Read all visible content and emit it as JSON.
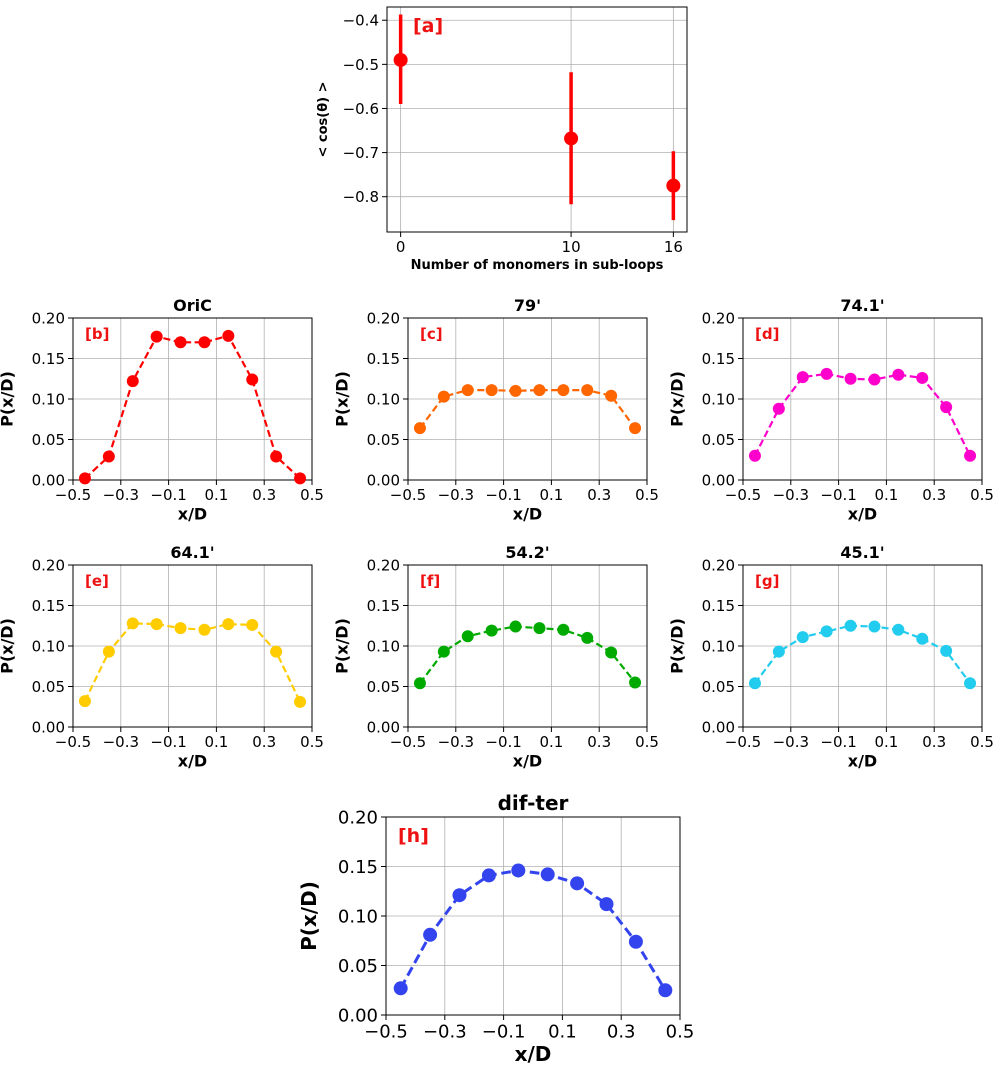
{
  "chart_data": [
    {
      "panel": "[a]",
      "type": "scatter",
      "title": "",
      "xlabel": "Number of monomers in sub-loops",
      "ylabel": "< cos(θ) >",
      "x_ticks": [
        0,
        10,
        16
      ],
      "y_ticks": [
        -0.8,
        -0.7,
        -0.6,
        -0.5,
        -0.4
      ],
      "y_tick_labels": [
        "−0.8",
        "−0.7",
        "−0.6",
        "−0.5",
        "−0.4"
      ],
      "xlim": [
        -0.8,
        16.8
      ],
      "ylim": [
        -0.88,
        -0.37
      ],
      "grid": true,
      "color": "#ff0000",
      "x": [
        0,
        10,
        16
      ],
      "y": [
        -0.49,
        -0.668,
        -0.775
      ],
      "yerr_low": [
        -0.59,
        -0.817,
        -0.853
      ],
      "yerr_high": [
        -0.387,
        -0.518,
        -0.697
      ]
    },
    {
      "panel": "[b]",
      "type": "line",
      "title": "OriC",
      "xlabel": "x/D",
      "ylabel": "P(x/D)",
      "color": "#ff0000",
      "xlim": [
        -0.5,
        0.5
      ],
      "ylim": [
        0,
        0.2
      ],
      "grid": true,
      "x_ticks": [
        -0.5,
        -0.3,
        -0.1,
        0.1,
        0.3,
        0.5
      ],
      "x_tick_labels": [
        "−0.5",
        "−0.3",
        "−0.1",
        "0.1",
        "0.3",
        "0.5"
      ],
      "y_ticks": [
        0,
        0.05,
        0.1,
        0.15,
        0.2
      ],
      "y_tick_labels": [
        "0.00",
        "0.05",
        "0.10",
        "0.15",
        "0.20"
      ],
      "x": [
        -0.45,
        -0.35,
        -0.25,
        -0.15,
        -0.05,
        0.05,
        0.15,
        0.25,
        0.35,
        0.45
      ],
      "y": [
        0.002,
        0.029,
        0.122,
        0.177,
        0.17,
        0.17,
        0.178,
        0.124,
        0.029,
        0.002
      ]
    },
    {
      "panel": "[c]",
      "type": "line",
      "title": "79'",
      "xlabel": "x/D",
      "ylabel": "P(x/D)",
      "color": "#ff6600",
      "xlim": [
        -0.5,
        0.5
      ],
      "ylim": [
        0,
        0.2
      ],
      "grid": true,
      "x_ticks": [
        -0.5,
        -0.3,
        -0.1,
        0.1,
        0.3,
        0.5
      ],
      "x_tick_labels": [
        "−0.5",
        "−0.3",
        "−0.1",
        "0.1",
        "0.3",
        "0.5"
      ],
      "y_ticks": [
        0,
        0.05,
        0.1,
        0.15,
        0.2
      ],
      "y_tick_labels": [
        "0.00",
        "0.05",
        "0.10",
        "0.15",
        "0.20"
      ],
      "x": [
        -0.45,
        -0.35,
        -0.25,
        -0.15,
        -0.05,
        0.05,
        0.15,
        0.25,
        0.35,
        0.45
      ],
      "y": [
        0.064,
        0.103,
        0.111,
        0.111,
        0.11,
        0.111,
        0.111,
        0.111,
        0.104,
        0.064
      ]
    },
    {
      "panel": "[d]",
      "type": "line",
      "title": "74.1'",
      "xlabel": "x/D",
      "ylabel": "P(x/D)",
      "color": "#ff00cc",
      "xlim": [
        -0.5,
        0.5
      ],
      "ylim": [
        0,
        0.2
      ],
      "grid": true,
      "x_ticks": [
        -0.5,
        -0.3,
        -0.1,
        0.1,
        0.3,
        0.5
      ],
      "x_tick_labels": [
        "−0.5",
        "−0.3",
        "−0.1",
        "0.1",
        "0.3",
        "0.5"
      ],
      "y_ticks": [
        0,
        0.05,
        0.1,
        0.15,
        0.2
      ],
      "y_tick_labels": [
        "0.00",
        "0.05",
        "0.10",
        "0.15",
        "0.20"
      ],
      "x": [
        -0.45,
        -0.35,
        -0.25,
        -0.15,
        -0.05,
        0.05,
        0.15,
        0.25,
        0.35,
        0.45
      ],
      "y": [
        0.03,
        0.088,
        0.127,
        0.131,
        0.125,
        0.124,
        0.13,
        0.126,
        0.09,
        0.03
      ]
    },
    {
      "panel": "[e]",
      "type": "line",
      "title": "64.1'",
      "xlabel": "x/D",
      "ylabel": "P(x/D)",
      "color": "#ffcc00",
      "xlim": [
        -0.5,
        0.5
      ],
      "ylim": [
        0,
        0.2
      ],
      "grid": true,
      "x_ticks": [
        -0.5,
        -0.3,
        -0.1,
        0.1,
        0.3,
        0.5
      ],
      "x_tick_labels": [
        "−0.5",
        "−0.3",
        "−0.1",
        "0.1",
        "0.3",
        "0.5"
      ],
      "y_ticks": [
        0,
        0.05,
        0.1,
        0.15,
        0.2
      ],
      "y_tick_labels": [
        "0.00",
        "0.05",
        "0.10",
        "0.15",
        "0.20"
      ],
      "x": [
        -0.45,
        -0.35,
        -0.25,
        -0.15,
        -0.05,
        0.05,
        0.15,
        0.25,
        0.35,
        0.45
      ],
      "y": [
        0.032,
        0.093,
        0.128,
        0.127,
        0.122,
        0.12,
        0.127,
        0.126,
        0.093,
        0.031
      ]
    },
    {
      "panel": "[f]",
      "type": "line",
      "title": "54.2'",
      "xlabel": "x/D",
      "ylabel": "P(x/D)",
      "color": "#00aa00",
      "xlim": [
        -0.5,
        0.5
      ],
      "ylim": [
        0,
        0.2
      ],
      "grid": true,
      "x_ticks": [
        -0.5,
        -0.3,
        -0.1,
        0.1,
        0.3,
        0.5
      ],
      "x_tick_labels": [
        "−0.5",
        "−0.3",
        "−0.1",
        "0.1",
        "0.3",
        "0.5"
      ],
      "y_ticks": [
        0,
        0.05,
        0.1,
        0.15,
        0.2
      ],
      "y_tick_labels": [
        "0.00",
        "0.05",
        "0.10",
        "0.15",
        "0.20"
      ],
      "x": [
        -0.45,
        -0.35,
        -0.25,
        -0.15,
        -0.05,
        0.05,
        0.15,
        0.25,
        0.35,
        0.45
      ],
      "y": [
        0.054,
        0.093,
        0.112,
        0.119,
        0.124,
        0.122,
        0.12,
        0.11,
        0.092,
        0.055
      ]
    },
    {
      "panel": "[g]",
      "type": "line",
      "title": "45.1'",
      "xlabel": "x/D",
      "ylabel": "P(x/D)",
      "color": "#22ccee",
      "xlim": [
        -0.5,
        0.5
      ],
      "ylim": [
        0,
        0.2
      ],
      "grid": true,
      "x_ticks": [
        -0.5,
        -0.3,
        -0.1,
        0.1,
        0.3,
        0.5
      ],
      "x_tick_labels": [
        "−0.5",
        "−0.3",
        "−0.1",
        "0.1",
        "0.3",
        "0.5"
      ],
      "y_ticks": [
        0,
        0.05,
        0.1,
        0.15,
        0.2
      ],
      "y_tick_labels": [
        "0.00",
        "0.05",
        "0.10",
        "0.15",
        "0.20"
      ],
      "x": [
        -0.45,
        -0.35,
        -0.25,
        -0.15,
        -0.05,
        0.05,
        0.15,
        0.25,
        0.35,
        0.45
      ],
      "y": [
        0.054,
        0.093,
        0.111,
        0.118,
        0.125,
        0.124,
        0.12,
        0.109,
        0.094,
        0.054
      ]
    },
    {
      "panel": "[h]",
      "type": "line",
      "title": "dif-ter",
      "xlabel": "x/D",
      "ylabel": "P(x/D)",
      "color": "#3344ee",
      "xlim": [
        -0.5,
        0.5
      ],
      "ylim": [
        0,
        0.2
      ],
      "grid": true,
      "x_ticks": [
        -0.5,
        -0.3,
        -0.1,
        0.1,
        0.3,
        0.5
      ],
      "x_tick_labels": [
        "−0.5",
        "−0.3",
        "−0.1",
        "0.1",
        "0.3",
        "0.5"
      ],
      "y_ticks": [
        0,
        0.05,
        0.1,
        0.15,
        0.2
      ],
      "y_tick_labels": [
        "0.00",
        "0.05",
        "0.10",
        "0.15",
        "0.20"
      ],
      "x": [
        -0.45,
        -0.35,
        -0.25,
        -0.15,
        -0.05,
        0.05,
        0.15,
        0.25,
        0.35,
        0.45
      ],
      "y": [
        0.027,
        0.081,
        0.121,
        0.141,
        0.146,
        0.142,
        0.133,
        0.112,
        0.074,
        0.025
      ]
    }
  ]
}
